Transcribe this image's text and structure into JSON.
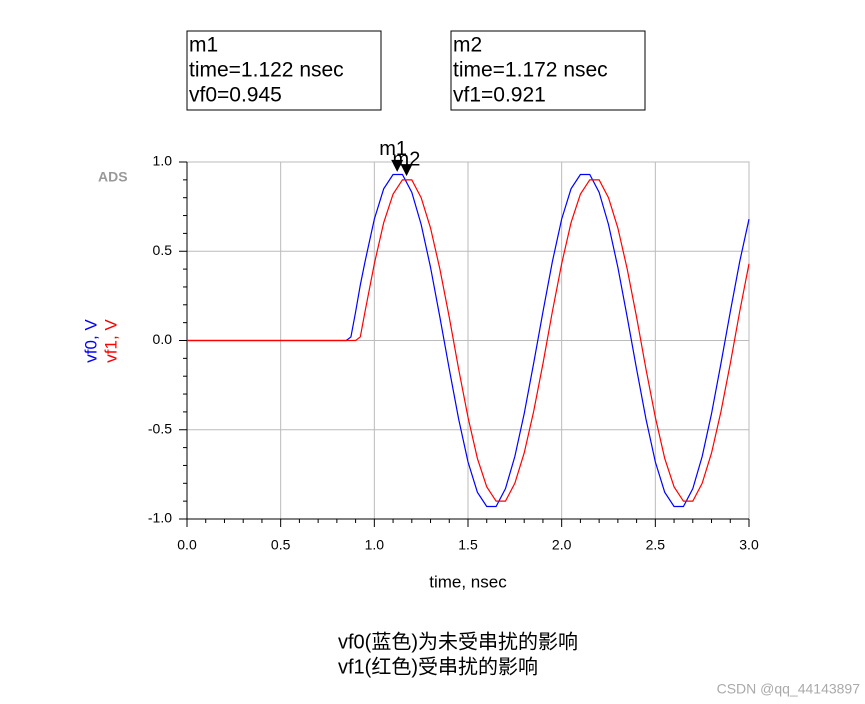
{
  "chart_data": {
    "type": "line",
    "badge": "ADS",
    "xlabel": "time, nsec",
    "x": [
      0,
      0.85,
      0.875,
      0.9,
      0.925,
      0.95,
      1.0,
      1.05,
      1.1,
      1.15,
      1.2,
      1.25,
      1.3,
      1.35,
      1.4,
      1.45,
      1.5,
      1.55,
      1.6,
      1.65,
      1.7,
      1.75,
      1.8,
      1.85,
      1.9,
      1.95,
      2.0,
      2.05,
      2.1,
      2.15,
      2.2,
      2.25,
      2.3,
      2.35,
      2.4,
      2.45,
      2.5,
      2.55,
      2.6,
      2.65,
      2.7,
      2.75,
      2.8,
      2.85,
      2.9,
      2.95,
      3.0
    ],
    "series": [
      {
        "name": "vf0, V",
        "color": "#0000ff",
        "values": [
          0,
          0,
          0.02,
          0.16,
          0.31,
          0.44,
          0.68,
          0.85,
          0.93,
          0.93,
          0.83,
          0.65,
          0.41,
          0.13,
          -0.16,
          -0.44,
          -0.68,
          -0.85,
          -0.93,
          -0.93,
          -0.83,
          -0.65,
          -0.41,
          -0.13,
          0.16,
          0.44,
          0.68,
          0.85,
          0.93,
          0.93,
          0.83,
          0.65,
          0.41,
          0.13,
          -0.16,
          -0.44,
          -0.68,
          -0.85,
          -0.93,
          -0.93,
          -0.83,
          -0.65,
          -0.41,
          -0.13,
          0.16,
          0.44,
          0.68
        ]
      },
      {
        "name": "vf1, V",
        "color": "#ff0000",
        "values": [
          0,
          0,
          0,
          0,
          0.02,
          0.16,
          0.43,
          0.66,
          0.82,
          0.9,
          0.9,
          0.8,
          0.63,
          0.4,
          0.13,
          -0.16,
          -0.43,
          -0.66,
          -0.82,
          -0.9,
          -0.9,
          -0.8,
          -0.63,
          -0.4,
          -0.13,
          0.16,
          0.43,
          0.66,
          0.82,
          0.9,
          0.9,
          0.8,
          0.63,
          0.4,
          0.13,
          -0.16,
          -0.43,
          -0.66,
          -0.82,
          -0.9,
          -0.9,
          -0.8,
          -0.63,
          -0.4,
          -0.13,
          0.16,
          0.43
        ]
      }
    ],
    "markers": [
      {
        "name": "m1",
        "time_label": "time=1.122 nsec",
        "value_label": "vf0=0.945",
        "x": 1.122,
        "y": 0.945
      },
      {
        "name": "m2",
        "time_label": "time=1.172 nsec",
        "value_label": "vf1=0.921",
        "x": 1.172,
        "y": 0.921
      }
    ],
    "xlim": [
      0,
      3
    ],
    "ylim": [
      -1,
      1
    ],
    "xticks": [
      {
        "value": 0,
        "label": "0.0"
      },
      {
        "value": 0.5,
        "label": "0.5"
      },
      {
        "value": 1,
        "label": "1.0"
      },
      {
        "value": 1.5,
        "label": "1.5"
      },
      {
        "value": 2,
        "label": "2.0"
      },
      {
        "value": 2.5,
        "label": "2.5"
      },
      {
        "value": 3,
        "label": "3.0"
      }
    ],
    "yticks": [
      {
        "value": -1,
        "label": "-1.0"
      },
      {
        "value": -0.5,
        "label": "-0.5"
      },
      {
        "value": 0,
        "label": "0.0"
      },
      {
        "value": 0.5,
        "label": "0.5"
      },
      {
        "value": 1,
        "label": "1.0"
      }
    ],
    "grid": true,
    "caption": [
      "vf0(蓝色)为未受串扰的影响",
      "vf1(红色)受串扰的影响"
    ],
    "watermark": "CSDN @qq_44143897"
  }
}
